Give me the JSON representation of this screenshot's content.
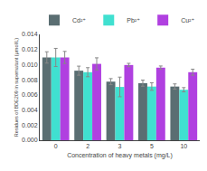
{
  "chart_data": {
    "type": "bar",
    "categories": [
      "0",
      "2",
      "3",
      "5",
      "10"
    ],
    "series": [
      {
        "name": "Cd²⁺",
        "color": "#5a6e72",
        "values": [
          0.01095,
          0.0092,
          0.00775,
          0.00755,
          0.0071
        ],
        "errors": [
          0.00075,
          0.0006,
          0.0004,
          0.0004,
          0.00035
        ]
      },
      {
        "name": "Pb²⁺",
        "color": "#40e0d0",
        "values": [
          0.01095,
          0.009,
          0.00705,
          0.0071,
          0.00668
        ],
        "errors": [
          0.0012,
          0.0006,
          0.0013,
          0.0005,
          0.00028
        ]
      },
      {
        "name": "Cu²⁺",
        "color": "#b040e0",
        "values": [
          0.01095,
          0.0101,
          0.00995,
          0.0096,
          0.009
        ],
        "errors": [
          0.0008,
          0.0008,
          0.00022,
          0.00022,
          0.0004
        ]
      }
    ],
    "xlabel": "Concentration of heavy metals (mg/L)",
    "ylabel": "Residues of BDE209 in supernatant (μmol/L)",
    "ylim": [
      0,
      0.014
    ],
    "yticks": [
      {
        "value": 0,
        "label": "0.000"
      },
      0.002,
      0.004,
      0.006,
      0.008,
      {
        "value": 0.01,
        "label": "0.010"
      },
      0.012,
      0.014
    ],
    "grid": false,
    "legend": "upper right"
  }
}
